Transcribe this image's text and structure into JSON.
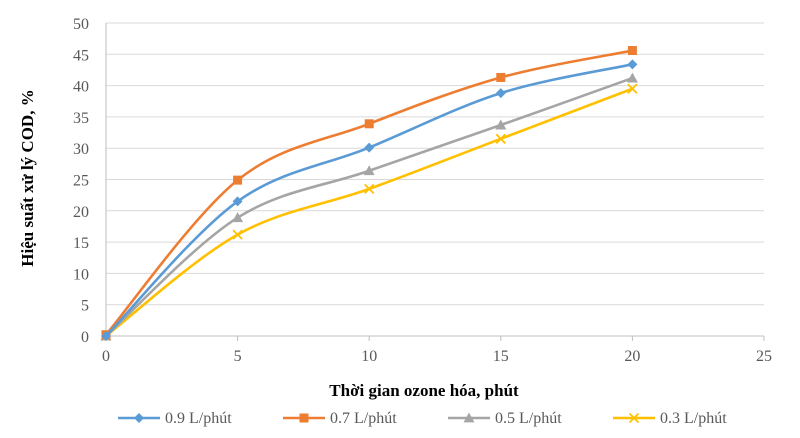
{
  "chart_data": {
    "type": "scatter",
    "title": "",
    "xlabel": "Thời gian ozone hóa, phút",
    "ylabel": "Hiệu suất xử lý COD, %",
    "xlim": [
      0,
      25
    ],
    "ylim": [
      0,
      50
    ],
    "xticks": [
      0,
      5,
      10,
      15,
      20,
      25
    ],
    "yticks": [
      0,
      5,
      10,
      15,
      20,
      25,
      30,
      35,
      40,
      45,
      50
    ],
    "grid": "horizontal",
    "legend_position": "bottom",
    "smooth_lines": true,
    "x": [
      0,
      5,
      10,
      15,
      20
    ],
    "series": [
      {
        "name": "0.9 L/phút",
        "values": [
          0,
          21.5,
          30.1,
          38.8,
          43.4
        ],
        "color": "#5b9bd5",
        "marker": "diamond"
      },
      {
        "name": "0.7 L/phút",
        "values": [
          0.2,
          24.9,
          33.9,
          41.3,
          45.6
        ],
        "color": "#ed7d31",
        "marker": "square"
      },
      {
        "name": "0.5 L/phút",
        "values": [
          0,
          18.9,
          26.4,
          33.7,
          41.2
        ],
        "color": "#a5a5a5",
        "marker": "triangle"
      },
      {
        "name": "0.3 L/phút",
        "values": [
          0,
          16.2,
          23.5,
          31.5,
          39.5
        ],
        "color": "#ffc000",
        "marker": "cross"
      }
    ]
  }
}
